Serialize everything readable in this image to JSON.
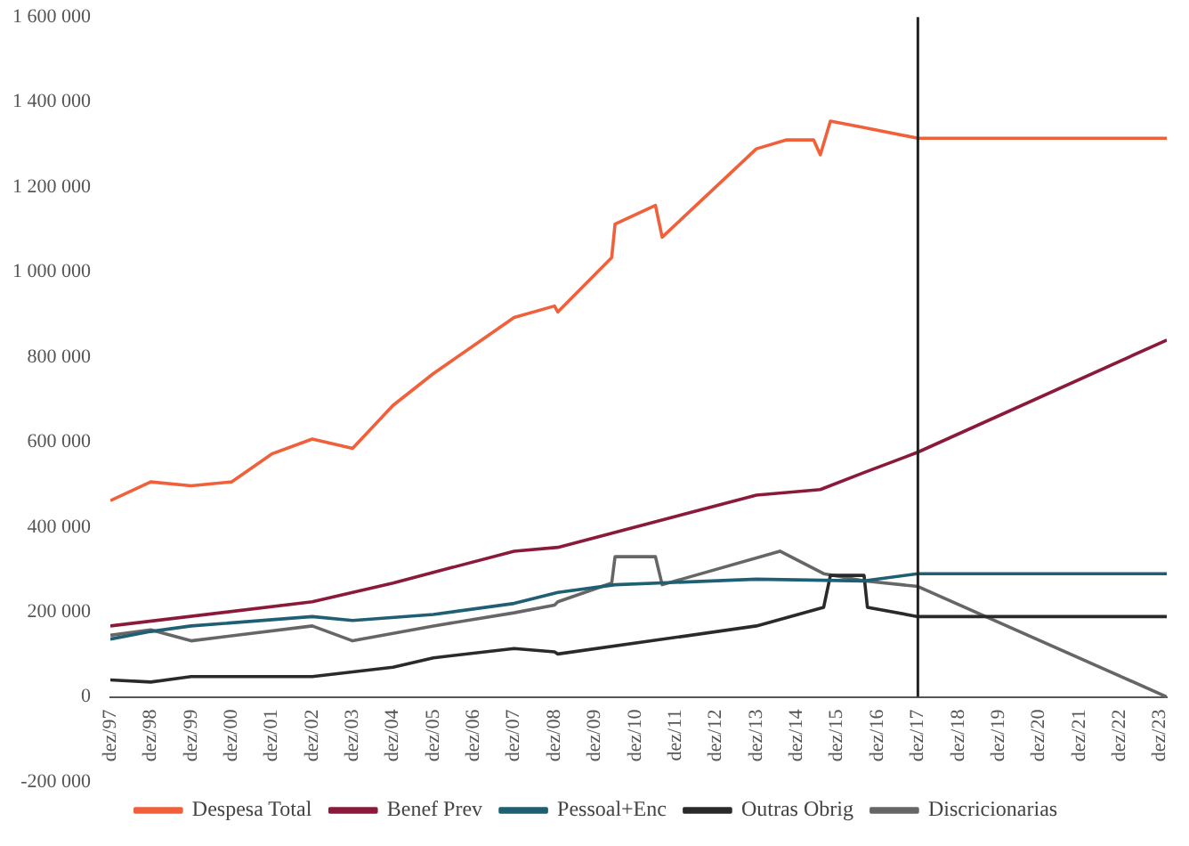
{
  "chart_data": {
    "type": "line",
    "xlim": [
      "1997-12",
      "2024-02"
    ],
    "ylim": [
      -200000,
      1600000
    ],
    "yticks": [
      {
        "value": -200000,
        "label": "-200 000"
      },
      {
        "value": 0,
        "label": "0"
      },
      {
        "value": 200000,
        "label": "200 000"
      },
      {
        "value": 400000,
        "label": "400 000"
      },
      {
        "value": 600000,
        "label": "600 000"
      },
      {
        "value": 800000,
        "label": "800 000"
      },
      {
        "value": 1000000,
        "label": "1 000 000"
      },
      {
        "value": 1200000,
        "label": "1 200 000"
      },
      {
        "value": 1400000,
        "label": "1 400 000"
      },
      {
        "value": 1600000,
        "label": "1 600 000"
      }
    ],
    "xticks": [
      {
        "value": "1997-12",
        "label": "dez/97"
      },
      {
        "value": "1998-12",
        "label": "dez/98"
      },
      {
        "value": "1999-12",
        "label": "dez/99"
      },
      {
        "value": "2000-12",
        "label": "dez/00"
      },
      {
        "value": "2001-12",
        "label": "dez/01"
      },
      {
        "value": "2002-12",
        "label": "dez/02"
      },
      {
        "value": "2003-12",
        "label": "dez/03"
      },
      {
        "value": "2004-12",
        "label": "dez/04"
      },
      {
        "value": "2005-12",
        "label": "dez/05"
      },
      {
        "value": "2006-12",
        "label": "dez/06"
      },
      {
        "value": "2007-12",
        "label": "dez/07"
      },
      {
        "value": "2008-12",
        "label": "dez/08"
      },
      {
        "value": "2009-12",
        "label": "dez/09"
      },
      {
        "value": "2010-12",
        "label": "dez/10"
      },
      {
        "value": "2011-12",
        "label": "dez/11"
      },
      {
        "value": "2012-12",
        "label": "dez/12"
      },
      {
        "value": "2013-12",
        "label": "dez/13"
      },
      {
        "value": "2014-12",
        "label": "dez/14"
      },
      {
        "value": "2015-12",
        "label": "dez/15"
      },
      {
        "value": "2016-12",
        "label": "dez/16"
      },
      {
        "value": "2017-12",
        "label": "dez/17"
      },
      {
        "value": "2018-12",
        "label": "dez/18"
      },
      {
        "value": "2019-12",
        "label": "dez/19"
      },
      {
        "value": "2020-12",
        "label": "dez/20"
      },
      {
        "value": "2021-12",
        "label": "dez/21"
      },
      {
        "value": "2022-12",
        "label": "dez/22"
      },
      {
        "value": "2023-12",
        "label": "dez/23"
      }
    ],
    "grid": false,
    "legend": "bottom",
    "marker": "none",
    "line_style": "solid",
    "ref_lines": [
      {
        "axis": "x",
        "value": "2017-12",
        "color": "#222222"
      }
    ],
    "series": [
      {
        "name": "Despesa Total",
        "color": "#f0603a",
        "x": [
          "1997-12",
          "1998-12",
          "1999-12",
          "2000-12",
          "2001-12",
          "2002-12",
          "2003-12",
          "2004-12",
          "2005-12",
          "2006-12",
          "2007-12",
          "2008-12",
          "2009-01",
          "2010-05",
          "2010-06",
          "2011-06",
          "2011-08",
          "2013-12",
          "2014-09",
          "2015-05",
          "2015-07",
          "2015-10",
          "2016-08",
          "2017-12",
          "2024-02"
        ],
        "values": [
          462000,
          506000,
          497000,
          506000,
          572000,
          607000,
          585000,
          686000,
          761000,
          827000,
          893000,
          920000,
          906000,
          1034000,
          1113000,
          1157000,
          1082000,
          1290000,
          1311000,
          1311000,
          1276000,
          1355000,
          1340000,
          1315000,
          1315000
        ]
      },
      {
        "name": "Benef Prev",
        "color": "#8b1a3a",
        "x": [
          "1997-12",
          "2002-12",
          "2004-12",
          "2007-12",
          "2009-01",
          "2013-12",
          "2015-07",
          "2016-08",
          "2017-12",
          "2024-02"
        ],
        "values": [
          167000,
          224000,
          268000,
          343000,
          352000,
          475000,
          488000,
          528000,
          576000,
          840000
        ]
      },
      {
        "name": "Pessoal+Enc",
        "color": "#1f5f73",
        "x": [
          "1997-12",
          "1998-12",
          "1999-12",
          "2002-12",
          "2003-12",
          "2005-12",
          "2007-12",
          "2009-01",
          "2010-06",
          "2013-12",
          "2016-08",
          "2017-12",
          "2024-02"
        ],
        "values": [
          136000,
          154000,
          167000,
          189000,
          180000,
          194000,
          220000,
          246000,
          264000,
          277000,
          273000,
          290000,
          290000
        ]
      },
      {
        "name": "Outras Obrig",
        "color": "#2a2a2a",
        "x": [
          "1997-12",
          "1998-12",
          "1999-12",
          "2002-12",
          "2004-12",
          "2005-12",
          "2007-12",
          "2008-12",
          "2009-01",
          "2013-12",
          "2015-08",
          "2015-10",
          "2016-08",
          "2016-09",
          "2017-12",
          "2024-02"
        ],
        "values": [
          40000,
          35000,
          48000,
          48000,
          70000,
          92000,
          114000,
          106000,
          101000,
          167000,
          211000,
          286000,
          286000,
          211000,
          189000,
          189000
        ]
      },
      {
        "name": "Discricionarias",
        "color": "#666666",
        "x": [
          "1997-12",
          "1998-12",
          "1999-12",
          "2002-12",
          "2003-12",
          "2005-12",
          "2007-12",
          "2008-12",
          "2009-01",
          "2010-05",
          "2010-06",
          "2011-06",
          "2011-08",
          "2014-07",
          "2015-08",
          "2016-08",
          "2017-12",
          "2024-02"
        ],
        "values": [
          145000,
          158000,
          132000,
          167000,
          132000,
          167000,
          198000,
          216000,
          224000,
          268000,
          330000,
          330000,
          264000,
          343000,
          290000,
          273000,
          260000,
          0
        ]
      }
    ]
  }
}
